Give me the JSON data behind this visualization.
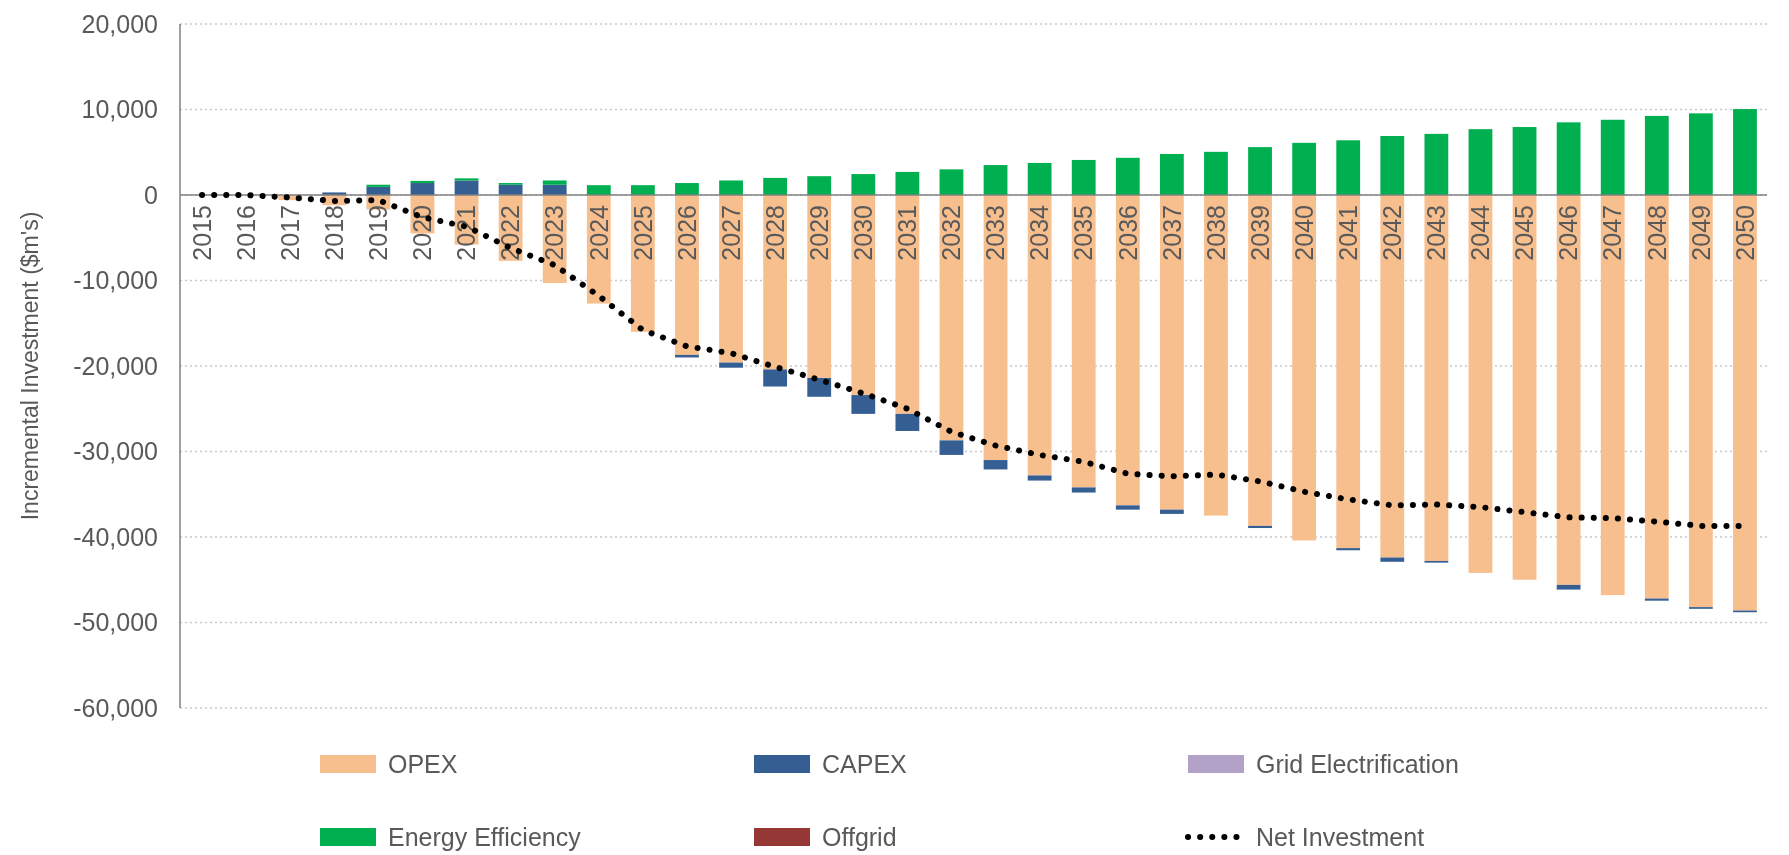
{
  "chart_data": {
    "type": "bar",
    "stacked": true,
    "ylabel": "Incremental Investment ($m's)",
    "categories": [
      "2015",
      "2016",
      "2017",
      "2018",
      "2019",
      "2020",
      "2021",
      "2022",
      "2023",
      "2024",
      "2025",
      "2026",
      "2027",
      "2028",
      "2029",
      "2030",
      "2031",
      "2032",
      "2033",
      "2034",
      "2035",
      "2036",
      "2037",
      "2038",
      "2039",
      "2040",
      "2041",
      "2042",
      "2043",
      "2044",
      "2045",
      "2046",
      "2047",
      "2048",
      "2049",
      "2050"
    ],
    "series": [
      {
        "name": "OPEX",
        "color": "#f8bf8e",
        "values": [
          0,
          0,
          -600,
          -1200,
          -1700,
          -4500,
          -5800,
          -7700,
          -10300,
          -12700,
          -16000,
          -18700,
          -19600,
          -20400,
          -21400,
          -23400,
          -25600,
          -28700,
          -31000,
          -32800,
          -34200,
          -36300,
          -36800,
          -37500,
          -38700,
          -40400,
          -41300,
          -42400,
          -42800,
          -44200,
          -45000,
          -45600,
          -46800,
          -47200,
          -48200,
          -48600
        ]
      },
      {
        "name": "CAPEX",
        "color": "#355f93",
        "values": [
          0,
          0,
          0,
          300,
          950,
          1400,
          1700,
          1200,
          1200,
          0,
          0,
          -300,
          -600,
          -2000,
          -2200,
          -2200,
          -2000,
          -1700,
          -1100,
          -600,
          -600,
          -500,
          -500,
          0,
          -250,
          0,
          -250,
          -500,
          -200,
          0,
          0,
          -550,
          0,
          -250,
          -200,
          -200
        ]
      },
      {
        "name": "Grid Electrification",
        "color": "#b3a2c7",
        "values": [
          null,
          null,
          null,
          null,
          null,
          null,
          null,
          null,
          null,
          null,
          null,
          null,
          null,
          null,
          null,
          null,
          null,
          null,
          null,
          null,
          null,
          null,
          null,
          null,
          null,
          null,
          null,
          null,
          null,
          null,
          null,
          null,
          null,
          null,
          null,
          null
        ]
      },
      {
        "name": "Energy Efficiency",
        "color": "#00b050",
        "values": [
          0,
          0,
          0,
          0,
          250,
          250,
          250,
          200,
          500,
          1150,
          1150,
          1400,
          1700,
          2000,
          2200,
          2450,
          2700,
          3000,
          3500,
          3750,
          4100,
          4350,
          4800,
          5050,
          5600,
          6100,
          6400,
          6900,
          7150,
          7700,
          7950,
          8500,
          8800,
          9250,
          9550,
          10050
        ]
      },
      {
        "name": "Offgrid",
        "color": "#953735",
        "values": [
          null,
          null,
          null,
          null,
          null,
          null,
          null,
          null,
          null,
          null,
          null,
          null,
          null,
          null,
          null,
          null,
          null,
          null,
          null,
          null,
          null,
          null,
          null,
          null,
          null,
          null,
          null,
          null,
          null,
          null,
          null,
          null,
          null,
          null,
          null,
          null
        ]
      },
      {
        "name": "Net Investment",
        "type": "line",
        "color": "#000000",
        "line_style": "dotted",
        "values": [
          0,
          0,
          -300,
          -700,
          -600,
          -2600,
          -3700,
          -6200,
          -8200,
          -11800,
          -15800,
          -17700,
          -18500,
          -20100,
          -21600,
          -23200,
          -25000,
          -27700,
          -29300,
          -30400,
          -31200,
          -32600,
          -32900,
          -32700,
          -33500,
          -34700,
          -35600,
          -36300,
          -36200,
          -36500,
          -37100,
          -37700,
          -37800,
          -38200,
          -38700,
          -38700
        ]
      }
    ],
    "ylim": [
      -60000,
      20000
    ],
    "yticks": [
      {
        "value": -60000,
        "label": "-60,000"
      },
      {
        "value": -50000,
        "label": "-50,000"
      },
      {
        "value": -40000,
        "label": "-40,000"
      },
      {
        "value": -30000,
        "label": "-30,000"
      },
      {
        "value": -20000,
        "label": "-20,000"
      },
      {
        "value": -10000,
        "label": "-10,000"
      },
      0,
      {
        "value": 10000,
        "label": "10,000"
      },
      {
        "value": 20000,
        "label": "20,000"
      }
    ],
    "grid": "y",
    "legend": "bottom"
  }
}
